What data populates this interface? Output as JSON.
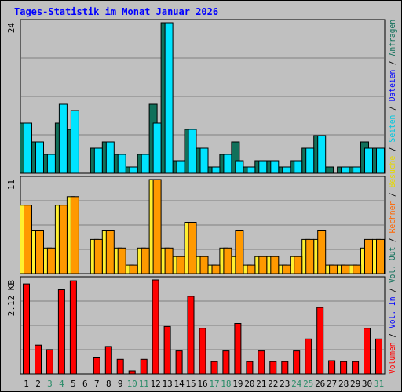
{
  "title": "Tages-Statistik im Monat Januar 2026",
  "chart_data": {
    "type": "bar",
    "title": "Tages-Statistik im Monat Januar 2026",
    "categories": [
      "1",
      "2",
      "3",
      "4",
      "5",
      "6",
      "7",
      "8",
      "9",
      "10",
      "11",
      "12",
      "13",
      "14",
      "15",
      "16",
      "17",
      "18",
      "19",
      "20",
      "21",
      "22",
      "23",
      "24",
      "25",
      "26",
      "27",
      "28",
      "29",
      "30",
      "31"
    ],
    "weekend_color": "#2a8c68",
    "weekday_color": "#000000",
    "weekend_days": [
      "3",
      "4",
      "10",
      "11",
      "17",
      "18",
      "24",
      "25",
      "31"
    ],
    "panels": [
      {
        "axis_label": "24",
        "ymax": 24,
        "series": [
          {
            "name": "Anfragen",
            "color": "#11705a",
            "values": [
              8,
              5,
              3,
              8,
              7,
              0,
              4,
              5,
              3,
              1,
              3,
              11,
              24,
              2,
              7,
              4,
              1,
              3,
              5,
              1,
              2,
              2,
              1,
              2,
              4,
              6,
              1,
              1,
              1,
              5,
              4
            ]
          },
          {
            "name": "Dateien",
            "color": "#00e4ff",
            "values": [
              8,
              5,
              3,
              11,
              10,
              0,
              4,
              5,
              3,
              1,
              3,
              8,
              24,
              2,
              7,
              4,
              1,
              3,
              2,
              1,
              2,
              2,
              1,
              2,
              4,
              6,
              0,
              1,
              1,
              4,
              4
            ]
          }
        ]
      },
      {
        "axis_label": "11",
        "ymax": 11,
        "series": [
          {
            "name": "Besuche",
            "color": "#fff030",
            "values": [
              8,
              5,
              3,
              8,
              9,
              0,
              4,
              5,
              3,
              1,
              3,
              11,
              3,
              2,
              6,
              2,
              1,
              3,
              2,
              1,
              2,
              2,
              1,
              2,
              4,
              4,
              1,
              1,
              1,
              3,
              4
            ]
          },
          {
            "name": "Rechner",
            "color": "#ff9900",
            "values": [
              8,
              5,
              3,
              8,
              9,
              0,
              4,
              5,
              3,
              1,
              3,
              11,
              3,
              2,
              6,
              2,
              1,
              3,
              5,
              1,
              2,
              2,
              1,
              2,
              4,
              5,
              1,
              1,
              1,
              4,
              4
            ]
          }
        ]
      },
      {
        "axis_label": "2.12 KB",
        "ymax": 2.12,
        "series": [
          {
            "name": "Volumen",
            "color": "#ff0000",
            "values": [
              2.03,
              0.65,
              0.55,
              1.9,
              2.1,
              0,
              0.38,
              0.62,
              0.33,
              0.07,
              0.33,
              2.12,
              1.07,
              0.52,
              1.75,
              1.03,
              0.28,
              0.52,
              1.14,
              0.28,
              0.52,
              0.28,
              0.28,
              0.52,
              0.79,
              1.5,
              0.3,
              0.28,
              0.28,
              1.03,
              0.79
            ]
          }
        ]
      }
    ],
    "legend_right": [
      {
        "text": "Volumen",
        "color": "#ff0000"
      },
      {
        "text": " / ",
        "color": "#000000"
      },
      {
        "text": "Vol. In",
        "color": "#0000ff"
      },
      {
        "text": " / ",
        "color": "#000000"
      },
      {
        "text": "Vol. Out",
        "color": "#11705a"
      },
      {
        "text": " / ",
        "color": "#000000"
      },
      {
        "text": "Rechner",
        "color": "#ff6600"
      },
      {
        "text": " / ",
        "color": "#000000"
      },
      {
        "text": "Besuche",
        "color": "#e6d800"
      },
      {
        "text": " / ",
        "color": "#000000"
      },
      {
        "text": "Seiten",
        "color": "#00c8e0"
      },
      {
        "text": " / ",
        "color": "#000000"
      },
      {
        "text": "Dateien",
        "color": "#0000ff"
      },
      {
        "text": " / ",
        "color": "#000000"
      },
      {
        "text": "Anfragen",
        "color": "#11705a"
      }
    ],
    "grid": true,
    "legend_position": "right"
  }
}
